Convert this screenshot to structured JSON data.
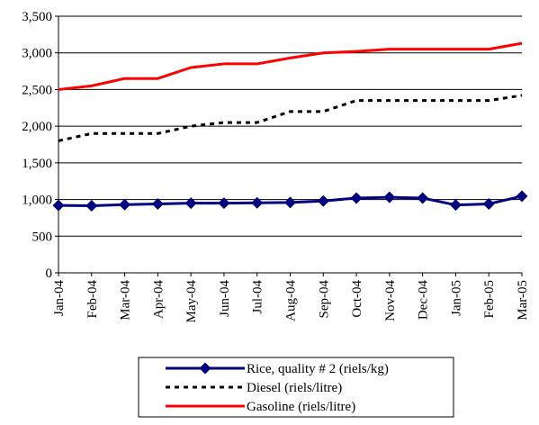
{
  "chart_data": {
    "type": "line",
    "title": "",
    "xlabel": "",
    "ylabel": "",
    "categories": [
      "Jan-04",
      "Feb-04",
      "Mar-04",
      "Apr-04",
      "May-04",
      "Jun-04",
      "Jul-04",
      "Aug-04",
      "Sep-04",
      "Oct-04",
      "Nov-04",
      "Dec-04",
      "Jan-05",
      "Feb-05",
      "Mar-05"
    ],
    "ylim": [
      0,
      3500
    ],
    "y_ticks": [
      "0",
      "500",
      "1,000",
      "1,500",
      "2,000",
      "2,500",
      "3,000",
      "3,500"
    ],
    "y_tick_values": [
      0,
      500,
      1000,
      1500,
      2000,
      2500,
      3000,
      3500
    ],
    "grid": "horizontal",
    "legend_position": "bottom",
    "series": [
      {
        "name": "Rice, quality # 2 (riels/kg)",
        "color": "#000080",
        "style": "solid-diamond-markers",
        "values": [
          920,
          915,
          930,
          940,
          950,
          950,
          955,
          960,
          980,
          1020,
          1030,
          1020,
          925,
          940,
          1045
        ]
      },
      {
        "name": "Diesel (riels/litre)",
        "color": "#000000",
        "style": "dotted",
        "values": [
          1800,
          1900,
          1900,
          1900,
          2000,
          2050,
          2050,
          2200,
          2200,
          2350,
          2350,
          2350,
          2350,
          2350,
          2420
        ]
      },
      {
        "name": "Gasoline (riels/litre)",
        "color": "#ff0000",
        "style": "solid",
        "values": [
          2500,
          2550,
          2650,
          2650,
          2800,
          2850,
          2850,
          2930,
          3000,
          3020,
          3050,
          3050,
          3050,
          3050,
          3130
        ]
      }
    ]
  }
}
